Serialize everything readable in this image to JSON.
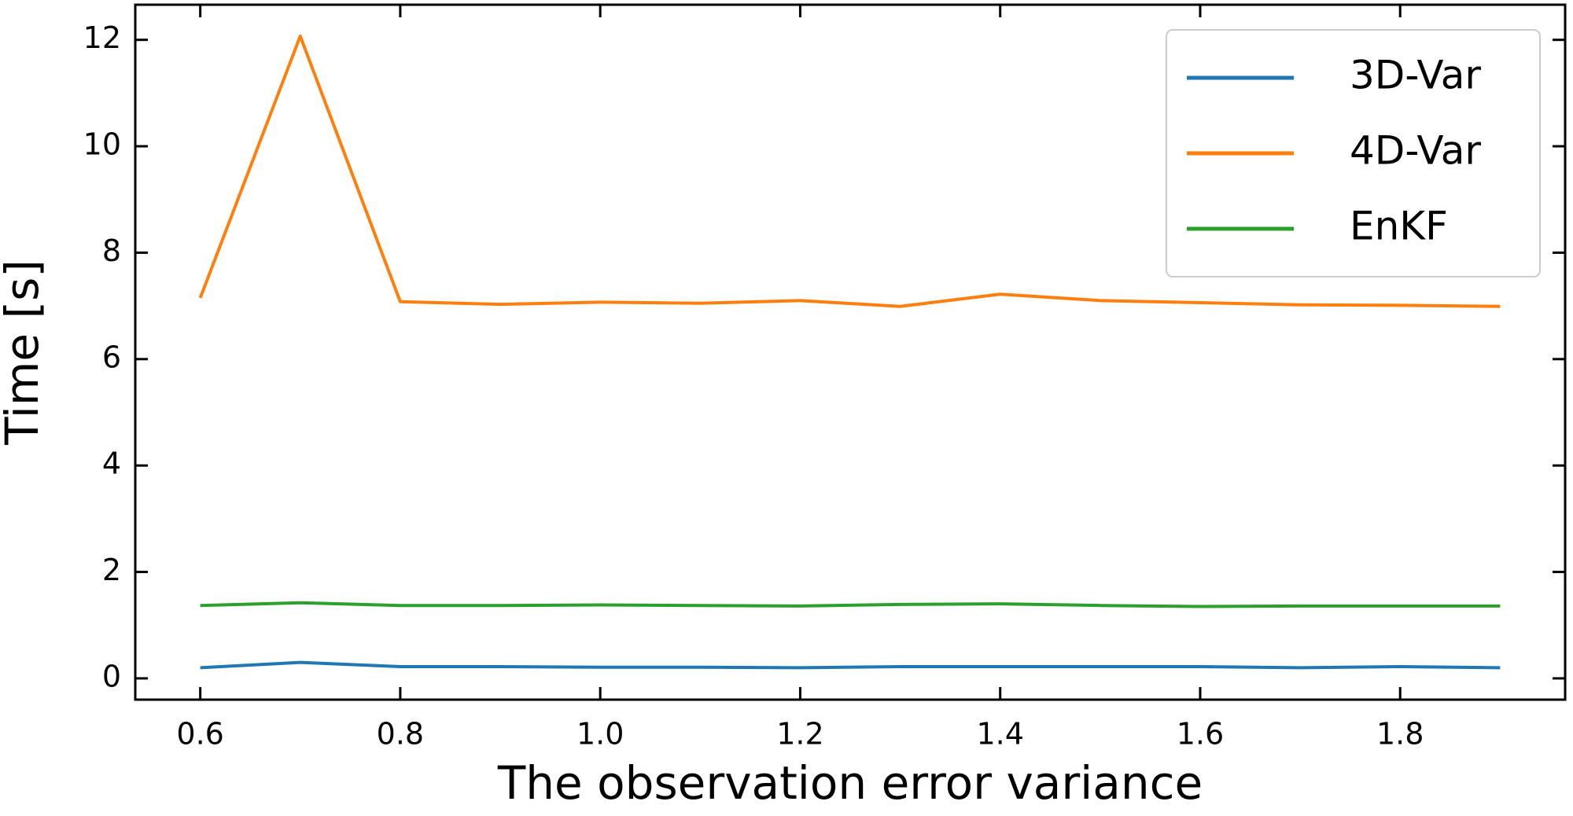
{
  "chart_data": {
    "type": "line",
    "x_label": "The observation error variance",
    "y_label": "Time [s]",
    "x": [
      0.6,
      0.7,
      0.8,
      0.9,
      1.0,
      1.1,
      1.2,
      1.3,
      1.4,
      1.5,
      1.6,
      1.7,
      1.8,
      1.9
    ],
    "series": [
      {
        "name": "3D-Var",
        "color": "#1f77b4",
        "values": [
          0.2,
          0.3,
          0.22,
          0.22,
          0.21,
          0.21,
          0.2,
          0.22,
          0.22,
          0.22,
          0.22,
          0.2,
          0.22,
          0.2
        ]
      },
      {
        "name": "4D-Var",
        "color": "#ff7f0e",
        "values": [
          7.15,
          12.07,
          7.08,
          7.03,
          7.07,
          7.05,
          7.1,
          6.99,
          7.22,
          7.1,
          7.06,
          7.02,
          7.01,
          6.99
        ]
      },
      {
        "name": "EnKF",
        "color": "#2ca02c",
        "values": [
          1.37,
          1.42,
          1.37,
          1.37,
          1.38,
          1.37,
          1.36,
          1.39,
          1.4,
          1.37,
          1.35,
          1.36,
          1.36,
          1.36
        ]
      }
    ],
    "xlim": [
      0.535,
      1.965
    ],
    "ylim": [
      -0.4,
      12.66
    ],
    "xticks": [
      0.6,
      0.8,
      {
        "value": 1,
        "label": "1.0"
      },
      1.2,
      1.4,
      1.6,
      1.8
    ],
    "yticks": [
      0,
      2,
      4,
      6,
      8,
      10,
      12
    ],
    "legend": "upper right"
  }
}
